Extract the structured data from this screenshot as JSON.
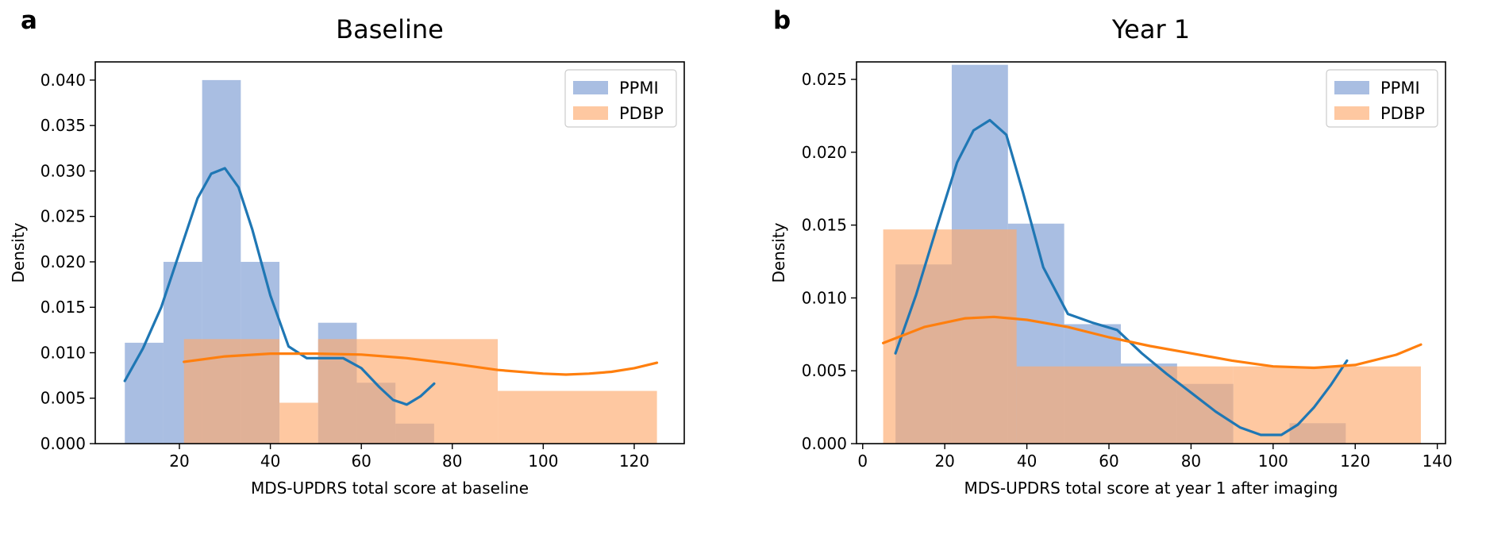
{
  "chart_data": [
    {
      "panel": "a",
      "type": "histogram",
      "title": "Baseline",
      "xlabel": "MDS-UPDRS total score at baseline",
      "ylabel": "Density",
      "xlim": [
        1.5,
        131
      ],
      "ylim": [
        0,
        0.042
      ],
      "xticks": [
        20,
        40,
        60,
        80,
        100,
        120
      ],
      "yticks": [
        0.0,
        0.005,
        0.01,
        0.015,
        0.02,
        0.025,
        0.03,
        0.035,
        0.04
      ],
      "ytick_labels": [
        "0.000",
        "0.005",
        "0.010",
        "0.015",
        "0.020",
        "0.025",
        "0.030",
        "0.035",
        "0.040"
      ],
      "legend": {
        "placement": "top-right"
      },
      "series": [
        {
          "name": "PPMI",
          "color": "#7b9bd2",
          "bins": [
            {
              "x0": 8,
              "x1": 16.5,
              "density": 0.0111
            },
            {
              "x0": 16.5,
              "x1": 25,
              "density": 0.02
            },
            {
              "x0": 25,
              "x1": 33.5,
              "density": 0.04
            },
            {
              "x0": 33.5,
              "x1": 42,
              "density": 0.02
            },
            {
              "x0": 42,
              "x1": 50.5,
              "density": 0.0
            },
            {
              "x0": 50.5,
              "x1": 59,
              "density": 0.0133
            },
            {
              "x0": 59,
              "x1": 67.5,
              "density": 0.0067
            },
            {
              "x0": 67.5,
              "x1": 76,
              "density": 0.0022
            }
          ],
          "kde": {
            "color": "#1f77b4",
            "x": [
              8,
              12,
              16,
              20,
              24,
              27,
              30,
              33,
              36,
              40,
              44,
              48,
              52,
              56,
              60,
              64,
              67,
              70,
              73,
              76
            ],
            "y": [
              0.0069,
              0.0105,
              0.015,
              0.021,
              0.027,
              0.0297,
              0.0303,
              0.0282,
              0.0236,
              0.0163,
              0.0107,
              0.0094,
              0.0094,
              0.0094,
              0.0083,
              0.0062,
              0.0048,
              0.0043,
              0.0052,
              0.0066
            ]
          }
        },
        {
          "name": "PDBP",
          "color": "#fdaa6e",
          "bins": [
            {
              "x0": 21,
              "x1": 42,
              "density": 0.0115
            },
            {
              "x0": 42,
              "x1": 50.5,
              "density": 0.0045
            },
            {
              "x0": 50.5,
              "x1": 90,
              "density": 0.0115
            },
            {
              "x0": 90,
              "x1": 125,
              "density": 0.0058
            }
          ],
          "kde": {
            "color": "#ff7f0e",
            "x": [
              21,
              30,
              40,
              50,
              60,
              70,
              80,
              90,
              100,
              105,
              110,
              115,
              120,
              125
            ],
            "y": [
              0.009,
              0.0096,
              0.0099,
              0.0099,
              0.0098,
              0.0094,
              0.0088,
              0.0081,
              0.0077,
              0.0076,
              0.0077,
              0.0079,
              0.0083,
              0.0089
            ]
          }
        }
      ]
    },
    {
      "panel": "b",
      "type": "histogram",
      "title": "Year 1",
      "xlabel": "MDS-UPDRS total score at year 1 after imaging",
      "ylabel": "Density",
      "xlim": [
        -1.5,
        142
      ],
      "ylim": [
        0,
        0.0262
      ],
      "xticks": [
        0,
        20,
        40,
        60,
        80,
        100,
        120,
        140
      ],
      "yticks": [
        0.0,
        0.005,
        0.01,
        0.015,
        0.02,
        0.025
      ],
      "ytick_labels": [
        "0.000",
        "0.005",
        "0.010",
        "0.015",
        "0.020",
        "0.025"
      ],
      "legend": {
        "placement": "top-right"
      },
      "series": [
        {
          "name": "PPMI",
          "color": "#7b9bd2",
          "bins": [
            {
              "x0": 8,
              "x1": 21.7,
              "density": 0.0123
            },
            {
              "x0": 21.7,
              "x1": 35.4,
              "density": 0.026
            },
            {
              "x0": 35.4,
              "x1": 49.1,
              "density": 0.0151
            },
            {
              "x0": 49.1,
              "x1": 62.9,
              "density": 0.0082
            },
            {
              "x0": 62.9,
              "x1": 76.6,
              "density": 0.0055
            },
            {
              "x0": 76.6,
              "x1": 90.3,
              "density": 0.0041
            },
            {
              "x0": 90.3,
              "x1": 104,
              "density": 0.0
            },
            {
              "x0": 104,
              "x1": 117.7,
              "density": 0.0014
            }
          ],
          "kde": {
            "color": "#1f77b4",
            "x": [
              8,
              13,
              18,
              23,
              27,
              31,
              35,
              39,
              44,
              50,
              56,
              62,
              68,
              74,
              80,
              86,
              92,
              97,
              102,
              106,
              110,
              114,
              118
            ],
            "y": [
              0.0062,
              0.0102,
              0.0148,
              0.0193,
              0.0215,
              0.0222,
              0.0212,
              0.0173,
              0.0121,
              0.0089,
              0.0083,
              0.0078,
              0.0062,
              0.0048,
              0.0035,
              0.0022,
              0.0011,
              0.0006,
              0.0006,
              0.0013,
              0.0025,
              0.004,
              0.0057
            ]
          }
        },
        {
          "name": "PDBP",
          "color": "#fdaa6e",
          "bins": [
            {
              "x0": 5,
              "x1": 37.5,
              "density": 0.0147
            },
            {
              "x0": 37.5,
              "x1": 90.3,
              "density": 0.0053
            },
            {
              "x0": 90.3,
              "x1": 136,
              "density": 0.0053
            }
          ],
          "kde": {
            "color": "#ff7f0e",
            "x": [
              5,
              15,
              25,
              32,
              40,
              50,
              60,
              70,
              80,
              90,
              100,
              110,
              120,
              130,
              136
            ],
            "y": [
              0.0069,
              0.008,
              0.0086,
              0.0087,
              0.0085,
              0.008,
              0.0073,
              0.0067,
              0.0062,
              0.0057,
              0.0053,
              0.0052,
              0.0054,
              0.0061,
              0.0068
            ]
          }
        }
      ]
    }
  ]
}
